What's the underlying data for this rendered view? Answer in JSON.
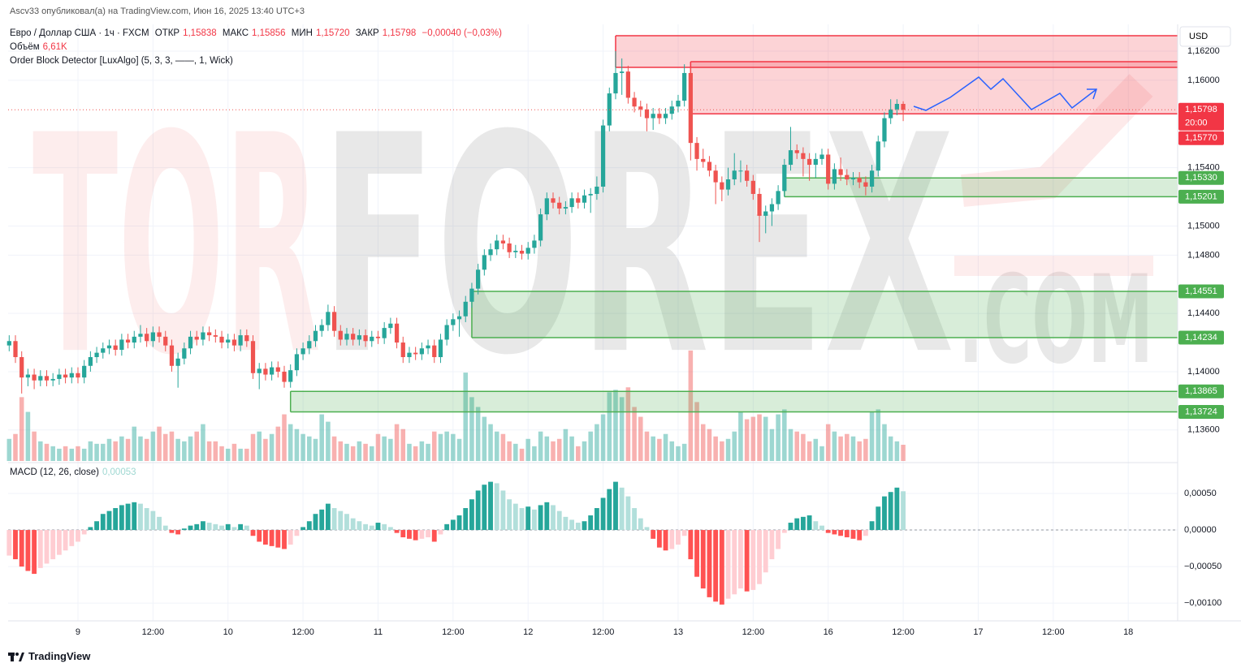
{
  "header": {
    "published": "Ascv33 опубликовал(а) на TradingView.com, Июн 16, 2025 13:40 UTC+3",
    "symbol": "Евро / Доллар США · 1ч · FXCM",
    "ohlc": [
      {
        "label": "ОТКР",
        "value": "1,15838"
      },
      {
        "label": "МАКС",
        "value": "1,15856"
      },
      {
        "label": "МИН",
        "value": "1,15720"
      },
      {
        "label": "ЗАКР",
        "value": "1,15798"
      }
    ],
    "change": "−0,00040 (−0,03%)",
    "volume_label": "Объём",
    "volume_value": "6,61K",
    "indicator": "Order Block Detector [LuxAlgo] (5, 3, 3, ——, 1, Wick)",
    "macd_label": "MACD (12, 26, close)",
    "macd_value": "0,00053",
    "currency": "USD"
  },
  "watermark": {
    "left": "TOR",
    "middle": "FOREX",
    "right": ".COM"
  },
  "footer": "TradingView",
  "chart_data": [
    {
      "type": "candlestick",
      "up_color": "#26a69a",
      "down_color": "#ef5350",
      "xlim": [
        -0.17,
        186.9
      ],
      "xticks": [
        {
          "value": 11,
          "label": "9"
        },
        {
          "value": 23,
          "label": "12:00"
        },
        {
          "value": 35,
          "label": "10"
        },
        {
          "value": 47,
          "label": "12:00"
        },
        {
          "value": 59,
          "label": "11"
        },
        {
          "value": 71,
          "label": "12:00"
        },
        {
          "value": 83,
          "label": "12"
        },
        {
          "value": 95,
          "label": "12:00"
        },
        {
          "value": 107,
          "label": "13"
        },
        {
          "value": 119,
          "label": "12:00"
        },
        {
          "value": 131,
          "label": "16"
        },
        {
          "value": 143,
          "label": "12:00"
        },
        {
          "value": 155,
          "label": "17"
        },
        {
          "value": 167,
          "label": "12:00"
        },
        {
          "value": 179,
          "label": "18"
        }
      ],
      "ylim": [
        1.13387,
        1.16384
      ],
      "yticks": [
        {
          "value": 1.162,
          "label": "1,16200"
        },
        {
          "value": 1.16,
          "label": "1,16000"
        },
        {
          "value": 1.154,
          "label": "1,15400"
        },
        {
          "value": 1.15,
          "label": "1,15000"
        },
        {
          "value": 1.148,
          "label": "1,14800"
        },
        {
          "value": 1.144,
          "label": "1,14400"
        },
        {
          "value": 1.14,
          "label": "1,14000"
        },
        {
          "value": 1.136,
          "label": "1,13600"
        }
      ],
      "grid": true,
      "open": [
        1.1418,
        1.1421,
        1.141,
        1.1396,
        1.1398,
        1.1394,
        1.1397,
        1.1394,
        1.1395,
        1.1398,
        1.1396,
        1.1399,
        1.1396,
        1.1404,
        1.141,
        1.1413,
        1.1416,
        1.1418,
        1.1415,
        1.1422,
        1.142,
        1.1424,
        1.1426,
        1.1421,
        1.1427,
        1.1424,
        1.1418,
        1.1404,
        1.1409,
        1.1416,
        1.1424,
        1.1422,
        1.1427,
        1.1425,
        1.1424,
        1.142,
        1.1422,
        1.1418,
        1.1425,
        1.1421,
        1.1399,
        1.1402,
        1.1398,
        1.1403,
        1.14,
        1.1393,
        1.1401,
        1.1412,
        1.1416,
        1.1421,
        1.1428,
        1.1432,
        1.1441,
        1.1428,
        1.1422,
        1.1426,
        1.1422,
        1.1425,
        1.1421,
        1.1424,
        1.1423,
        1.143,
        1.1433,
        1.142,
        1.141,
        1.1413,
        1.1412,
        1.1416,
        1.1418,
        1.141,
        1.1422,
        1.1432,
        1.1436,
        1.1438,
        1.1448,
        1.1457,
        1.147,
        1.148,
        1.1484,
        1.149,
        1.1488,
        1.1482,
        1.1483,
        1.1481,
        1.1485,
        1.149,
        1.1508,
        1.1519,
        1.1516,
        1.1512,
        1.1513,
        1.1519,
        1.1516,
        1.1521,
        1.1522,
        1.1527,
        1.1569,
        1.1591,
        1.1605,
        1.1606,
        1.1588,
        1.1582,
        1.158,
        1.1574,
        1.1577,
        1.1574,
        1.1577,
        1.1582,
        1.1586,
        1.1605,
        1.1557,
        1.1546,
        1.1544,
        1.1538,
        1.153,
        1.1525,
        1.1532,
        1.1538,
        1.1538,
        1.1531,
        1.1522,
        1.1507,
        1.151,
        1.1515,
        1.1524,
        1.1542,
        1.1552,
        1.155,
        1.1546,
        1.1542,
        1.1546,
        1.1549,
        1.1529,
        1.1539,
        1.1535,
        1.1532,
        1.1533,
        1.153,
        1.1527,
        1.1538,
        1.1558,
        1.1574,
        1.158,
        1.15838
      ],
      "high": [
        1.1425,
        1.1425,
        1.1414,
        1.1402,
        1.1402,
        1.1401,
        1.1401,
        1.1399,
        1.1402,
        1.1402,
        1.1403,
        1.1403,
        1.1408,
        1.1414,
        1.1417,
        1.142,
        1.1422,
        1.1422,
        1.1426,
        1.1426,
        1.1428,
        1.1432,
        1.143,
        1.1431,
        1.1431,
        1.1428,
        1.1422,
        1.1413,
        1.142,
        1.1428,
        1.1428,
        1.1431,
        1.1431,
        1.1429,
        1.1428,
        1.1426,
        1.1426,
        1.1429,
        1.1429,
        1.1425,
        1.1406,
        1.1406,
        1.1407,
        1.1407,
        1.1404,
        1.1405,
        1.1416,
        1.142,
        1.1425,
        1.1432,
        1.1436,
        1.1446,
        1.1445,
        1.1432,
        1.143,
        1.143,
        1.1429,
        1.1429,
        1.1428,
        1.1428,
        1.1434,
        1.1437,
        1.1437,
        1.1424,
        1.1417,
        1.1417,
        1.142,
        1.1422,
        1.1422,
        1.1426,
        1.1436,
        1.144,
        1.1442,
        1.1452,
        1.1461,
        1.1474,
        1.1484,
        1.1488,
        1.1494,
        1.1494,
        1.1492,
        1.1487,
        1.1487,
        1.1489,
        1.1494,
        1.1512,
        1.1523,
        1.1523,
        1.152,
        1.1517,
        1.1523,
        1.1523,
        1.1525,
        1.1526,
        1.1534,
        1.1573,
        1.1595,
        1.162,
        1.1615,
        1.161,
        1.1592,
        1.1586,
        1.1584,
        1.1581,
        1.1581,
        1.1581,
        1.1586,
        1.159,
        1.1611,
        1.1609,
        1.1561,
        1.1553,
        1.1548,
        1.1542,
        1.1534,
        1.154,
        1.155,
        1.1545,
        1.1542,
        1.1535,
        1.1526,
        1.1514,
        1.1519,
        1.1528,
        1.1546,
        1.1568,
        1.1556,
        1.1554,
        1.155,
        1.155,
        1.1553,
        1.1553,
        1.1543,
        1.1547,
        1.1539,
        1.1537,
        1.1537,
        1.1534,
        1.1542,
        1.1562,
        1.1578,
        1.1587,
        1.1587,
        1.15856
      ],
      "low": [
        1.1414,
        1.1406,
        1.1385,
        1.139,
        1.1388,
        1.139,
        1.139,
        1.139,
        1.1391,
        1.1392,
        1.1392,
        1.1392,
        1.1392,
        1.14,
        1.1406,
        1.1409,
        1.1412,
        1.1411,
        1.1411,
        1.1416,
        1.1416,
        1.142,
        1.1417,
        1.1417,
        1.142,
        1.1414,
        1.14,
        1.1389,
        1.1405,
        1.1412,
        1.1418,
        1.1418,
        1.1421,
        1.142,
        1.1416,
        1.1416,
        1.1414,
        1.1414,
        1.1417,
        1.1395,
        1.1388,
        1.1394,
        1.1394,
        1.1396,
        1.1389,
        1.1389,
        1.1397,
        1.1408,
        1.1412,
        1.1417,
        1.1424,
        1.1428,
        1.1424,
        1.1418,
        1.1418,
        1.1418,
        1.1418,
        1.1417,
        1.1417,
        1.1419,
        1.1419,
        1.1426,
        1.1416,
        1.1406,
        1.1406,
        1.1408,
        1.1408,
        1.1412,
        1.1406,
        1.1406,
        1.1418,
        1.1428,
        1.1424,
        1.1434,
        1.1444,
        1.1453,
        1.1466,
        1.1476,
        1.148,
        1.1484,
        1.1478,
        1.1478,
        1.1477,
        1.1477,
        1.1481,
        1.1486,
        1.1504,
        1.1512,
        1.1508,
        1.1508,
        1.1509,
        1.1512,
        1.1512,
        1.1509,
        1.1518,
        1.1523,
        1.1565,
        1.1587,
        1.159,
        1.1584,
        1.1578,
        1.1575,
        1.1565,
        1.1566,
        1.157,
        1.157,
        1.1573,
        1.1578,
        1.1582,
        1.1545,
        1.1538,
        1.154,
        1.1534,
        1.1515,
        1.1517,
        1.1521,
        1.1528,
        1.153,
        1.1527,
        1.1518,
        1.1489,
        1.1495,
        1.15,
        1.1511,
        1.152,
        1.1538,
        1.1546,
        1.1534,
        1.1531,
        1.1533,
        1.1542,
        1.1525,
        1.1525,
        1.1531,
        1.1528,
        1.1528,
        1.1526,
        1.1521,
        1.1523,
        1.1534,
        1.1554,
        1.157,
        1.1576,
        1.1572
      ],
      "close": [
        1.1421,
        1.141,
        1.1396,
        1.1398,
        1.1394,
        1.1397,
        1.1394,
        1.1395,
        1.1398,
        1.1396,
        1.1399,
        1.1396,
        1.1404,
        1.141,
        1.1413,
        1.1416,
        1.1418,
        1.1415,
        1.1422,
        1.142,
        1.1424,
        1.1426,
        1.1421,
        1.1427,
        1.1424,
        1.1418,
        1.1404,
        1.1409,
        1.1416,
        1.1424,
        1.1422,
        1.1427,
        1.1425,
        1.1424,
        1.142,
        1.1422,
        1.1418,
        1.1425,
        1.1421,
        1.1399,
        1.1402,
        1.1398,
        1.1403,
        1.14,
        1.1393,
        1.1401,
        1.1412,
        1.1416,
        1.1421,
        1.1428,
        1.1432,
        1.1441,
        1.1428,
        1.1422,
        1.1426,
        1.1422,
        1.1425,
        1.1421,
        1.1424,
        1.1423,
        1.143,
        1.1433,
        1.142,
        1.141,
        1.1413,
        1.1412,
        1.1416,
        1.1418,
        1.141,
        1.1422,
        1.1432,
        1.1436,
        1.1438,
        1.1448,
        1.1457,
        1.147,
        1.148,
        1.1484,
        1.149,
        1.1488,
        1.1482,
        1.1483,
        1.1481,
        1.1485,
        1.149,
        1.1508,
        1.1519,
        1.1516,
        1.1512,
        1.1513,
        1.1519,
        1.1516,
        1.1521,
        1.1522,
        1.1527,
        1.1569,
        1.1591,
        1.1605,
        1.1606,
        1.1588,
        1.1582,
        1.158,
        1.1574,
        1.1577,
        1.1574,
        1.1577,
        1.1582,
        1.1586,
        1.1605,
        1.1557,
        1.1546,
        1.1544,
        1.1538,
        1.153,
        1.1525,
        1.1532,
        1.1538,
        1.1538,
        1.1531,
        1.1522,
        1.1507,
        1.151,
        1.1515,
        1.1524,
        1.1542,
        1.1552,
        1.155,
        1.1546,
        1.1542,
        1.1546,
        1.1549,
        1.1529,
        1.1539,
        1.1535,
        1.1532,
        1.1533,
        1.153,
        1.1527,
        1.1538,
        1.1558,
        1.1574,
        1.158,
        1.15838,
        1.15798
      ],
      "order_blocks": [
        {
          "top": 1.16306,
          "bottom": 1.16089,
          "start": 97,
          "color": "#f23645"
        },
        {
          "top": 1.16128,
          "bottom": 1.1577,
          "start": 109,
          "color": "#f23645"
        },
        {
          "top": 1.1533,
          "bottom": 1.15201,
          "start": 124,
          "color": "#4caf50"
        },
        {
          "top": 1.14551,
          "bottom": 1.14234,
          "start": 74,
          "color": "#4caf50"
        },
        {
          "top": 1.13865,
          "bottom": 1.13724,
          "start": 45,
          "color": "#4caf50"
        }
      ],
      "price_labels": [
        {
          "value": 1.15798,
          "label": "1,15798",
          "color": "#f23645",
          "countdown": "20:00"
        },
        {
          "value": 1.1577,
          "label": "1,15770",
          "color": "#f23645"
        },
        {
          "value": 1.1533,
          "label": "1,15330",
          "color": "#4caf50"
        },
        {
          "value": 1.15201,
          "label": "1,15201",
          "color": "#4caf50"
        },
        {
          "value": 1.14551,
          "label": "1,14551",
          "color": "#4caf50"
        },
        {
          "value": 1.14234,
          "label": "1,14234",
          "color": "#4caf50"
        },
        {
          "value": 1.13865,
          "label": "1,13865",
          "color": "#4caf50"
        },
        {
          "value": 1.13724,
          "label": "1,13724",
          "color": "#4caf50"
        }
      ]
    },
    {
      "type": "volume",
      "ylim": [
        0,
        40
      ],
      "values": [
        9,
        11,
        26,
        20,
        12,
        8,
        7,
        6,
        5,
        6,
        5,
        6,
        5,
        8,
        7,
        7,
        9,
        8,
        10,
        9,
        14,
        10,
        9,
        12,
        14,
        11,
        12,
        9,
        8,
        10,
        12,
        15,
        8,
        8,
        6,
        5,
        7,
        5,
        5,
        11,
        12,
        9,
        11,
        14,
        19,
        15,
        13,
        11,
        10,
        9,
        19,
        16,
        10,
        8,
        7,
        6,
        8,
        7,
        6,
        11,
        10,
        9,
        15,
        13,
        7,
        6,
        8,
        7,
        12,
        11,
        12,
        11,
        9,
        36,
        26,
        22,
        18,
        15,
        12,
        11,
        8,
        7,
        5,
        9,
        6,
        12,
        10,
        8,
        9,
        13,
        10,
        6,
        8,
        12,
        15,
        19,
        28,
        29,
        26,
        30,
        22,
        18,
        12,
        10,
        9,
        11,
        8,
        6,
        7,
        45,
        24,
        15,
        13,
        10,
        8,
        9,
        12,
        20,
        17,
        18,
        19,
        18,
        13,
        19,
        21,
        13,
        12,
        11,
        8,
        9,
        6,
        15,
        12,
        10,
        11,
        10,
        8,
        9,
        20,
        21,
        15,
        10,
        8,
        6.61
      ]
    },
    {
      "type": "macd",
      "ylim": [
        -0.00121,
        0.0009
      ],
      "yticks": [
        {
          "value": 0.0005,
          "label": "0,00050"
        },
        {
          "value": 0,
          "label": "0,00000"
        },
        {
          "value": -0.0005,
          "label": "−0,00050"
        },
        {
          "value": -0.001,
          "label": "−0,00100"
        }
      ],
      "colors": {
        "up_rising": "#26a69a",
        "up_falling": "#b2dfdb",
        "down_falling": "#ff5252",
        "down_rising": "#ffcdd2"
      },
      "values": [
        -0.00035,
        -0.0004,
        -0.0005,
        -0.00056,
        -0.0006,
        -0.00052,
        -0.00046,
        -0.0004,
        -0.00034,
        -0.00028,
        -0.00022,
        -0.00016,
        -6e-05,
        4e-05,
        0.00012,
        0.00022,
        0.00026,
        0.0003,
        0.00034,
        0.00036,
        0.00038,
        0.00036,
        0.0003,
        0.00026,
        0.00018,
        6e-05,
        -4e-05,
        -6e-05,
        2e-05,
        6e-05,
        8e-05,
        0.00012,
        0.0001,
        8e-05,
        6e-05,
        8e-05,
        4e-05,
        8e-05,
        6e-05,
        -8e-05,
        -0.00016,
        -0.0002,
        -0.00022,
        -0.00024,
        -0.00026,
        -0.0002,
        -8e-05,
        4e-05,
        0.00012,
        0.00022,
        0.00028,
        0.00036,
        0.0003,
        0.00026,
        0.00022,
        0.00016,
        0.00012,
        8e-05,
        6e-05,
        0.0001,
        8e-05,
        4e-05,
        -4e-05,
        -0.0001,
        -0.00012,
        -0.00014,
        -0.00012,
        -0.0001,
        -0.00016,
        -6e-05,
        8e-05,
        0.00014,
        0.0002,
        0.0003,
        0.00042,
        0.00054,
        0.00062,
        0.00066,
        0.00064,
        0.00054,
        0.00042,
        0.00036,
        0.0003,
        0.00032,
        0.00028,
        0.00034,
        0.00038,
        0.00034,
        0.00026,
        0.00018,
        0.00014,
        0.0001,
        0.00012,
        0.0002,
        0.0003,
        0.00044,
        0.00056,
        0.00066,
        0.00058,
        0.00046,
        0.0003,
        0.00016,
        4e-05,
        -0.00012,
        -0.00024,
        -0.00028,
        -0.00026,
        -0.0002,
        -8e-05,
        -0.0004,
        -0.00064,
        -0.0008,
        -0.00092,
        -0.00098,
        -0.00102,
        -0.00094,
        -0.00088,
        -0.0008,
        -0.00084,
        -0.00082,
        -0.00074,
        -0.00058,
        -0.0004,
        -0.00026,
        -4e-05,
        0.0001,
        0.00016,
        0.00018,
        0.0002,
        0.00012,
        6e-05,
        -4e-05,
        -6e-05,
        -8e-05,
        -0.0001,
        -0.00012,
        -0.00014,
        -8e-05,
        0.00012,
        0.00032,
        0.00046,
        0.00052,
        0.00058,
        0.00053
      ]
    }
  ]
}
